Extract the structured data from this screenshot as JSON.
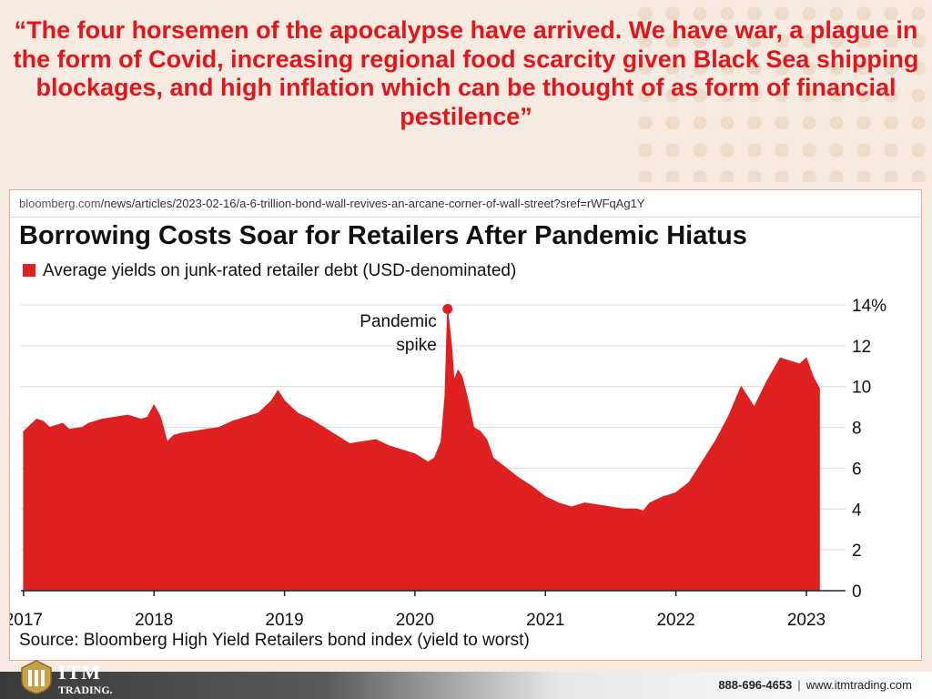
{
  "quote": "“The four horsemen of the apocalypse have arrived. We have war, a plague in the form of Covid, increasing regional food scarcity given Black Sea shipping blockages, and high inflation which can be thought of as form of financial pestilence”",
  "source_url": {
    "domain": "bloomberg.com",
    "path": "/news/articles/2023-02-16/a-6-trillion-bond-wall-revives-an-arcane-corner-of-wall-street?sref=rWFqAg1Y"
  },
  "footer": {
    "brand_name": "ITM",
    "brand_sub": "TRADING.",
    "phone": "888-696-4653",
    "separator": "|",
    "website": "www.itmtrading.com"
  },
  "colors": {
    "accent": "#e3151b",
    "area": "#de2020"
  },
  "chart_data": {
    "type": "area",
    "title": "Borrowing Costs Soar for Retailers After Pandemic Hiatus",
    "legend": "Average yields on junk-rated retailer debt (USD-denominated)",
    "source": "Source: Bloomberg High Yield Retailers bond index (yield to worst)",
    "y_unit": "%",
    "ylim": [
      0,
      14
    ],
    "y_ticks": [
      0,
      2,
      4,
      6,
      8,
      10,
      12,
      14
    ],
    "y_tick_labels": [
      "0",
      "2",
      "4",
      "6",
      "8",
      "10",
      "12",
      "14%"
    ],
    "x_ticks": [
      2017,
      2018,
      2019,
      2020,
      2021,
      2022,
      2023
    ],
    "xlim": [
      2016.98,
      2023.3
    ],
    "grid": true,
    "legend_position": "top-left",
    "annotation": {
      "text": [
        "Pandemic",
        "spike"
      ],
      "x": 2020.25,
      "y": 13.8
    },
    "series": [
      {
        "x": [
          2017.0,
          2017.1,
          2017.15,
          2017.2,
          2017.3,
          2017.35,
          2017.45,
          2017.5,
          2017.6,
          2017.7,
          2017.8,
          2017.9,
          2017.95,
          2018.0,
          2018.05,
          2018.1,
          2018.15,
          2018.2,
          2018.3,
          2018.4,
          2018.5,
          2018.6,
          2018.7,
          2018.8,
          2018.9,
          2018.95,
          2019.0,
          2019.05,
          2019.1,
          2019.2,
          2019.3,
          2019.4,
          2019.5,
          2019.6,
          2019.7,
          2019.8,
          2019.9,
          2020.0,
          2020.05,
          2020.1,
          2020.15,
          2020.2,
          2020.23,
          2020.25,
          2020.28,
          2020.3,
          2020.33,
          2020.36,
          2020.4,
          2020.45,
          2020.5,
          2020.55,
          2020.6,
          2020.7,
          2020.8,
          2020.9,
          2021.0,
          2021.1,
          2021.2,
          2021.3,
          2021.4,
          2021.5,
          2021.6,
          2021.7,
          2021.75,
          2021.8,
          2021.9,
          2022.0,
          2022.1,
          2022.2,
          2022.3,
          2022.4,
          2022.5,
          2022.6,
          2022.7,
          2022.8,
          2022.9,
          2022.95,
          2023.0,
          2023.05,
          2023.1
        ],
        "y": [
          7.8,
          8.4,
          8.3,
          8.0,
          8.2,
          7.9,
          8.0,
          8.2,
          8.4,
          8.5,
          8.6,
          8.4,
          8.5,
          9.1,
          8.5,
          7.3,
          7.6,
          7.7,
          7.8,
          7.9,
          8.0,
          8.3,
          8.5,
          8.7,
          9.3,
          9.8,
          9.3,
          9.0,
          8.7,
          8.4,
          8.0,
          7.6,
          7.2,
          7.3,
          7.4,
          7.1,
          6.9,
          6.7,
          6.5,
          6.3,
          6.5,
          7.3,
          9.5,
          13.8,
          12.0,
          10.3,
          10.8,
          10.5,
          9.5,
          8.0,
          7.8,
          7.4,
          6.5,
          6.0,
          5.5,
          5.1,
          4.6,
          4.3,
          4.1,
          4.3,
          4.2,
          4.1,
          4.0,
          4.0,
          3.9,
          4.3,
          4.6,
          4.8,
          5.3,
          6.3,
          7.3,
          8.5,
          10.0,
          9.0,
          10.3,
          11.4,
          11.2,
          11.1,
          11.4,
          10.5,
          9.9
        ]
      }
    ]
  }
}
